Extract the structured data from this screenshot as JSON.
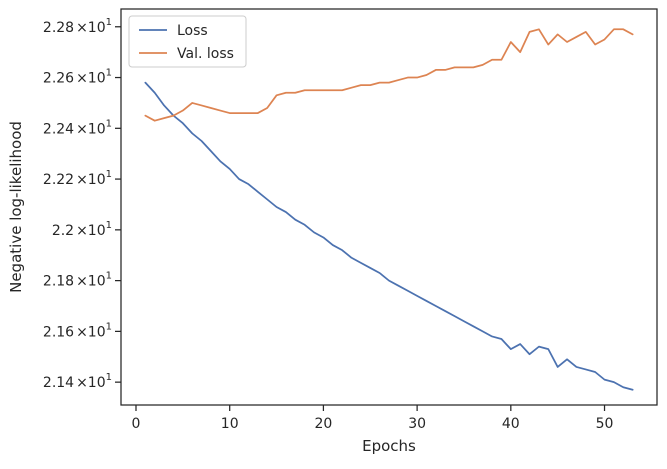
{
  "chart_data": {
    "type": "line",
    "xlabel": "Epochs",
    "ylabel": "Negative log-likelihood",
    "xlim": [
      -1.6,
      55.6
    ],
    "ylim": [
      21.31,
      22.87
    ],
    "legend": "upper-left",
    "grid": false,
    "x_ticks": [
      {
        "value": 0,
        "label": "0"
      },
      {
        "value": 10,
        "label": "10"
      },
      {
        "value": 20,
        "label": "20"
      },
      {
        "value": 30,
        "label": "30"
      },
      {
        "value": 40,
        "label": "40"
      },
      {
        "value": 50,
        "label": "50"
      }
    ],
    "y_ticks": [
      {
        "value": 21.4,
        "mantissa": "2.14",
        "times": "×10",
        "exp": "1"
      },
      {
        "value": 21.6,
        "mantissa": "2.16",
        "times": "×10",
        "exp": "1"
      },
      {
        "value": 21.8,
        "mantissa": "2.18",
        "times": "×10",
        "exp": "1"
      },
      {
        "value": 22.0,
        "mantissa": "2.2",
        "times": "×10",
        "exp": "1"
      },
      {
        "value": 22.2,
        "mantissa": "2.22",
        "times": "×10",
        "exp": "1"
      },
      {
        "value": 22.4,
        "mantissa": "2.24",
        "times": "×10",
        "exp": "1"
      },
      {
        "value": 22.6,
        "mantissa": "2.26",
        "times": "×10",
        "exp": "1"
      },
      {
        "value": 22.8,
        "mantissa": "2.28",
        "times": "×10",
        "exp": "1"
      }
    ],
    "x": [
      1,
      2,
      3,
      4,
      5,
      6,
      7,
      8,
      9,
      10,
      11,
      12,
      13,
      14,
      15,
      16,
      17,
      18,
      19,
      20,
      21,
      22,
      23,
      24,
      25,
      26,
      27,
      28,
      29,
      30,
      31,
      32,
      33,
      34,
      35,
      36,
      37,
      38,
      39,
      40,
      41,
      42,
      43,
      44,
      45,
      46,
      47,
      48,
      49,
      50,
      51,
      52,
      53
    ],
    "series": [
      {
        "name": "Loss",
        "color": "#4c72b0",
        "values": [
          22.58,
          22.54,
          22.49,
          22.45,
          22.42,
          22.38,
          22.35,
          22.31,
          22.27,
          22.24,
          22.2,
          22.18,
          22.15,
          22.12,
          22.09,
          22.07,
          22.04,
          22.02,
          21.99,
          21.97,
          21.94,
          21.92,
          21.89,
          21.87,
          21.85,
          21.83,
          21.8,
          21.78,
          21.76,
          21.74,
          21.72,
          21.7,
          21.68,
          21.66,
          21.64,
          21.62,
          21.6,
          21.58,
          21.57,
          21.53,
          21.55,
          21.51,
          21.54,
          21.53,
          21.46,
          21.49,
          21.46,
          21.45,
          21.44,
          21.41,
          21.4,
          21.38,
          21.37
        ]
      },
      {
        "name": "Val. loss",
        "color": "#dd8452",
        "values": [
          22.45,
          22.43,
          22.44,
          22.45,
          22.47,
          22.5,
          22.49,
          22.48,
          22.47,
          22.46,
          22.46,
          22.46,
          22.46,
          22.48,
          22.53,
          22.54,
          22.54,
          22.55,
          22.55,
          22.55,
          22.55,
          22.55,
          22.56,
          22.57,
          22.57,
          22.58,
          22.58,
          22.59,
          22.6,
          22.6,
          22.61,
          22.63,
          22.63,
          22.64,
          22.64,
          22.64,
          22.65,
          22.67,
          22.67,
          22.74,
          22.7,
          22.78,
          22.79,
          22.73,
          22.77,
          22.74,
          22.76,
          22.78,
          22.73,
          22.75,
          22.79,
          22.79,
          22.77
        ]
      }
    ]
  }
}
